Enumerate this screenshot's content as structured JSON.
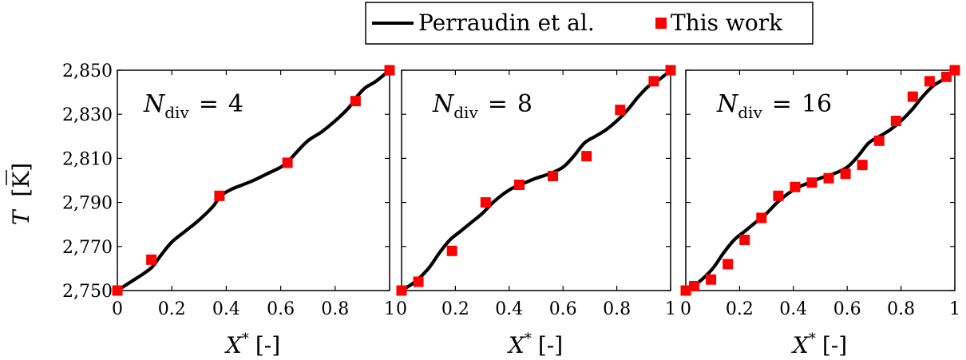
{
  "legend": {
    "items": [
      {
        "label": "Perraudin et al.",
        "kind": "line",
        "color": "#000000"
      },
      {
        "label": "This work",
        "kind": "square",
        "color": "#ff0000"
      }
    ]
  },
  "shared": {
    "ylabel_sym": "T",
    "ylabel_unit": "[K]",
    "xlabel_sym": "X",
    "xlabel_sup": "*",
    "xlabel_unit": "[-]",
    "yticks": [
      2750,
      2770,
      2790,
      2810,
      2830,
      2850
    ],
    "ytick_labels": [
      "2,750",
      "2,770",
      "2,790",
      "2,810",
      "2,830",
      "2,850"
    ],
    "xticks": [
      0,
      0.2,
      0.4,
      0.6,
      0.8,
      1
    ],
    "xtick_labels": [
      "0",
      "0.2",
      "0.4",
      "0.6",
      "0.8",
      "1"
    ],
    "ann_sym": "N",
    "ann_sub": "div",
    "ann_eq": "="
  },
  "chart_data": [
    {
      "type": "line",
      "ndiv": "4",
      "xlabel": "X* [-]",
      "ylabel": "T [K]",
      "xlim": [
        0,
        1
      ],
      "ylim": [
        2750,
        2850
      ],
      "grid": false,
      "legend_position": "top-center",
      "series": [
        {
          "name": "Perraudin et al.",
          "type": "line",
          "color": "#000000",
          "x": [
            0,
            0.05,
            0.1,
            0.13,
            0.16,
            0.2,
            0.25,
            0.3,
            0.35,
            0.38,
            0.42,
            0.46,
            0.5,
            0.55,
            0.6,
            0.63,
            0.66,
            0.7,
            0.75,
            0.8,
            0.85,
            0.88,
            0.91,
            0.95,
            1.0
          ],
          "y": [
            2750,
            2754,
            2758,
            2761,
            2766,
            2772,
            2777,
            2782,
            2788,
            2793,
            2796,
            2798,
            2800,
            2803,
            2806,
            2809,
            2813,
            2818,
            2822,
            2827,
            2833,
            2838,
            2842,
            2845,
            2850
          ]
        },
        {
          "name": "This work",
          "type": "scatter",
          "color": "#ff0000",
          "x": [
            0,
            0.125,
            0.375,
            0.625,
            0.875,
            1.0
          ],
          "y": [
            2750,
            2764,
            2793,
            2808,
            2836,
            2850
          ]
        }
      ]
    },
    {
      "type": "line",
      "ndiv": "8",
      "xlabel": "X* [-]",
      "ylabel": "T [K]",
      "xlim": [
        0,
        1
      ],
      "ylim": [
        2750,
        2850
      ],
      "grid": false,
      "series": [
        {
          "name": "Perraudin et al.",
          "type": "line",
          "color": "#000000",
          "x": [
            0,
            0.05,
            0.1,
            0.14,
            0.18,
            0.22,
            0.26,
            0.3,
            0.34,
            0.38,
            0.42,
            0.46,
            0.5,
            0.55,
            0.6,
            0.64,
            0.68,
            0.72,
            0.76,
            0.8,
            0.84,
            0.88,
            0.92,
            0.96,
            1.0
          ],
          "y": [
            2750,
            2754,
            2760,
            2767,
            2773,
            2777,
            2781,
            2785,
            2790,
            2794,
            2797,
            2799,
            2801,
            2803,
            2806,
            2811,
            2817,
            2820,
            2823,
            2827,
            2832,
            2838,
            2843,
            2846,
            2850
          ]
        },
        {
          "name": "This work",
          "type": "scatter",
          "color": "#ff0000",
          "x": [
            0,
            0.0625,
            0.1875,
            0.3125,
            0.4375,
            0.5625,
            0.6875,
            0.8125,
            0.9375,
            1.0
          ],
          "y": [
            2750,
            2754,
            2768,
            2790,
            2798,
            2802,
            2811,
            2832,
            2845,
            2850
          ]
        }
      ]
    },
    {
      "type": "line",
      "ndiv": "16",
      "xlabel": "X* [-]",
      "ylabel": "T [K]",
      "xlim": [
        0,
        1
      ],
      "ylim": [
        2750,
        2850
      ],
      "grid": false,
      "series": [
        {
          "name": "Perraudin et al.",
          "type": "line",
          "color": "#000000",
          "x": [
            0,
            0.05,
            0.1,
            0.14,
            0.18,
            0.22,
            0.26,
            0.3,
            0.34,
            0.38,
            0.42,
            0.46,
            0.5,
            0.55,
            0.6,
            0.64,
            0.68,
            0.72,
            0.76,
            0.8,
            0.84,
            0.88,
            0.92,
            0.96,
            1.0
          ],
          "y": [
            2750,
            2754,
            2760,
            2767,
            2773,
            2777,
            2781,
            2785,
            2790,
            2794,
            2797,
            2799,
            2801,
            2803,
            2806,
            2811,
            2817,
            2820,
            2823,
            2827,
            2832,
            2838,
            2843,
            2846,
            2850
          ]
        },
        {
          "name": "This work",
          "type": "scatter",
          "color": "#ff0000",
          "x": [
            0,
            0.03125,
            0.09375,
            0.15625,
            0.21875,
            0.28125,
            0.34375,
            0.40625,
            0.46875,
            0.53125,
            0.59375,
            0.65625,
            0.71875,
            0.78125,
            0.84375,
            0.90625,
            0.96875,
            1.0
          ],
          "y": [
            2750,
            2752,
            2755,
            2762,
            2773,
            2783,
            2793,
            2797,
            2799,
            2801,
            2803,
            2807,
            2818,
            2827,
            2838,
            2845,
            2847,
            2850
          ]
        }
      ]
    }
  ]
}
